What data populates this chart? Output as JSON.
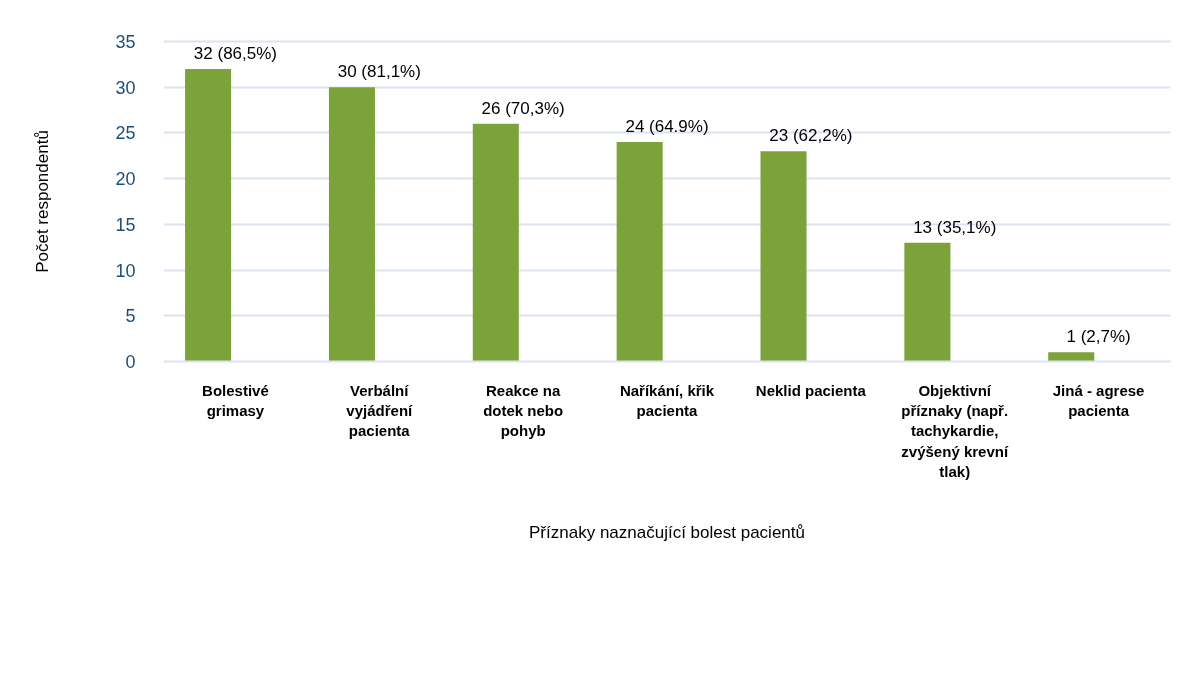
{
  "chart_data": {
    "type": "bar",
    "xlabel": "Příznaky naznačující bolest pacientů",
    "ylabel": "Počet respondentů",
    "categories": [
      "Bolestivé grimasy",
      "Verbální vyjádření pacienta",
      "Reakce na dotek nebo pohyb",
      "Naříkání, křik pacienta",
      "Neklid pacienta",
      "Objektivní příznaky (např. tachykardie, zvýšený krevní tlak)",
      "Jiná - agrese pacienta"
    ],
    "values": [
      32,
      30,
      26,
      24,
      23,
      13,
      1
    ],
    "value_labels": [
      "32 (86,5%)",
      "30 (81,1%)",
      "26 (70,3%)",
      "24 (64.9%)",
      "23 (62,2%)",
      "13 (35,1%)",
      "1 (2,7%)"
    ],
    "color": "#7ca23a",
    "ylim": [
      0,
      35
    ],
    "yticks": [
      0,
      5,
      10,
      15,
      20,
      25,
      30,
      35
    ],
    "grid": "y"
  }
}
